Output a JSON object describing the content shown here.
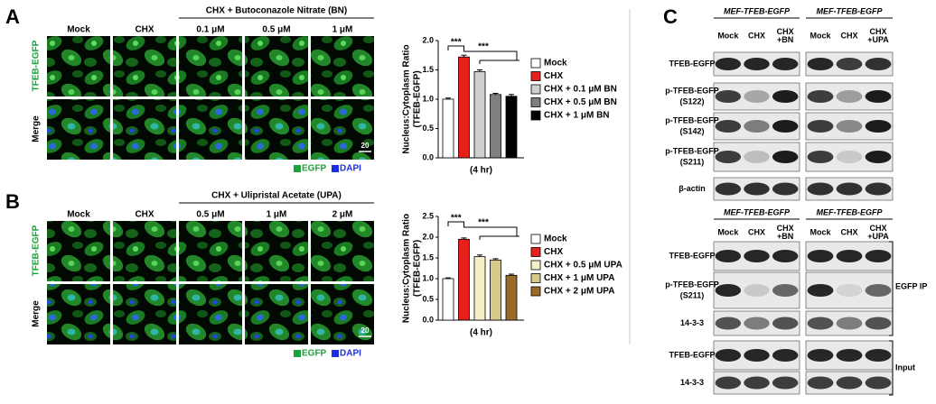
{
  "panel_a": {
    "letter": "A",
    "group_header": "CHX + Butoconazole Nitrate (BN)",
    "columns": [
      "Mock",
      "CHX",
      "0.1 μM",
      "0.5 μM",
      "1 μM"
    ],
    "rows": [
      "TFEB-EGFP",
      "Merge"
    ],
    "scale_bar": "20",
    "stains": [
      "EGFP",
      "DAPI"
    ]
  },
  "panel_b": {
    "letter": "B",
    "group_header": "CHX + Ulipristal Acetate (UPA)",
    "columns": [
      "Mock",
      "CHX",
      "0.5 μM",
      "1 μM",
      "2 μM"
    ],
    "rows": [
      "TFEB-EGFP",
      "Merge"
    ],
    "scale_bar": "20",
    "stains": [
      "EGFP",
      "DAPI"
    ]
  },
  "chart_data": [
    {
      "type": "bar",
      "y_label": [
        "Nucleus:Cytoplasm Ratio",
        "(TFEB-EGFP)"
      ],
      "categories": [
        "(4 hr)"
      ],
      "ylim": [
        0,
        2
      ],
      "yticks": [
        {
          "value": 0,
          "label": "0.0"
        },
        0.5,
        {
          "value": 1,
          "label": "1.0"
        },
        1.5,
        {
          "value": 2,
          "label": "2.0"
        }
      ],
      "annotations": [
        "***",
        "***"
      ],
      "series": [
        {
          "name": "Mock",
          "color": "#ffffff",
          "values": [
            1.0
          ],
          "errors": [
            0.02
          ]
        },
        {
          "name": "CHX",
          "color": "#e8201c",
          "values": [
            1.72
          ],
          "errors": [
            0.03
          ]
        },
        {
          "name": "CHX + 0.1 μM BN",
          "color": "#cfcfcf",
          "values": [
            1.47
          ],
          "errors": [
            0.03
          ]
        },
        {
          "name": "CHX + 0.5 μM BN",
          "color": "#7f7f7f",
          "values": [
            1.08
          ],
          "errors": [
            0.02
          ]
        },
        {
          "name": "CHX + 1 μM BN",
          "color": "#000000",
          "values": [
            1.05
          ],
          "errors": [
            0.03
          ]
        }
      ]
    },
    {
      "type": "bar",
      "y_label": [
        "Nucleus:Cytoplasm Ratio",
        "(TFEB-EGFP)"
      ],
      "categories": [
        "(4 hr)"
      ],
      "ylim": [
        0,
        2.5
      ],
      "yticks": [
        {
          "value": 0,
          "label": "0.0"
        },
        0.5,
        {
          "value": 1,
          "label": "1.0"
        },
        1.5,
        {
          "value": 2,
          "label": "2.0"
        },
        2.5
      ],
      "annotations": [
        "***",
        "***"
      ],
      "series": [
        {
          "name": "Mock",
          "color": "#ffffff",
          "values": [
            1.0
          ],
          "errors": [
            0.02
          ]
        },
        {
          "name": "CHX",
          "color": "#e8201c",
          "values": [
            1.95
          ],
          "errors": [
            0.03
          ]
        },
        {
          "name": "CHX + 0.5 μM UPA",
          "color": "#f6f0c8",
          "values": [
            1.53
          ],
          "errors": [
            0.04
          ]
        },
        {
          "name": "CHX + 1 μM UPA",
          "color": "#d6c98a",
          "values": [
            1.45
          ],
          "errors": [
            0.03
          ]
        },
        {
          "name": "CHX + 2 μM UPA",
          "color": "#9b6a27",
          "values": [
            1.08
          ],
          "errors": [
            0.03
          ]
        }
      ]
    }
  ],
  "panel_c": {
    "letter": "C",
    "top": {
      "blocks": [
        {
          "header": "MEF-TFEB-EGFP",
          "lanes": [
            [
              "Mock"
            ],
            [
              "CHX"
            ],
            [
              "CHX",
              "+BN"
            ]
          ]
        },
        {
          "header": "MEF-TFEB-EGFP",
          "lanes": [
            [
              "Mock"
            ],
            [
              "CHX"
            ],
            [
              "CHX",
              "+UPA"
            ]
          ]
        }
      ],
      "rows": [
        [
          "TFEB-EGFP"
        ],
        [
          "p-TFEB-EGFP",
          "(S122)"
        ],
        [
          "p-TFEB-EGFP",
          "(S142)"
        ],
        [
          "p-TFEB-EGFP",
          "(S211)"
        ],
        [
          "β-actin"
        ]
      ]
    },
    "bottom": {
      "blocks": [
        {
          "header": "MEF-TFEB-EGFP",
          "lanes": [
            [
              "Mock"
            ],
            [
              "CHX"
            ],
            [
              "CHX",
              "+BN"
            ]
          ]
        },
        {
          "header": "MEF-TFEB-EGFP",
          "lanes": [
            [
              "Mock"
            ],
            [
              "CHX"
            ],
            [
              "CHX",
              "+UPA"
            ]
          ]
        }
      ],
      "rows": [
        [
          "TFEB-EGFP"
        ],
        [
          "p-TFEB-EGFP",
          "(S211)"
        ],
        [
          "14-3-3"
        ],
        [
          "TFEB-EGFP"
        ],
        [
          "14-3-3"
        ]
      ],
      "groups": [
        "EGFP IP",
        "Input"
      ]
    }
  }
}
